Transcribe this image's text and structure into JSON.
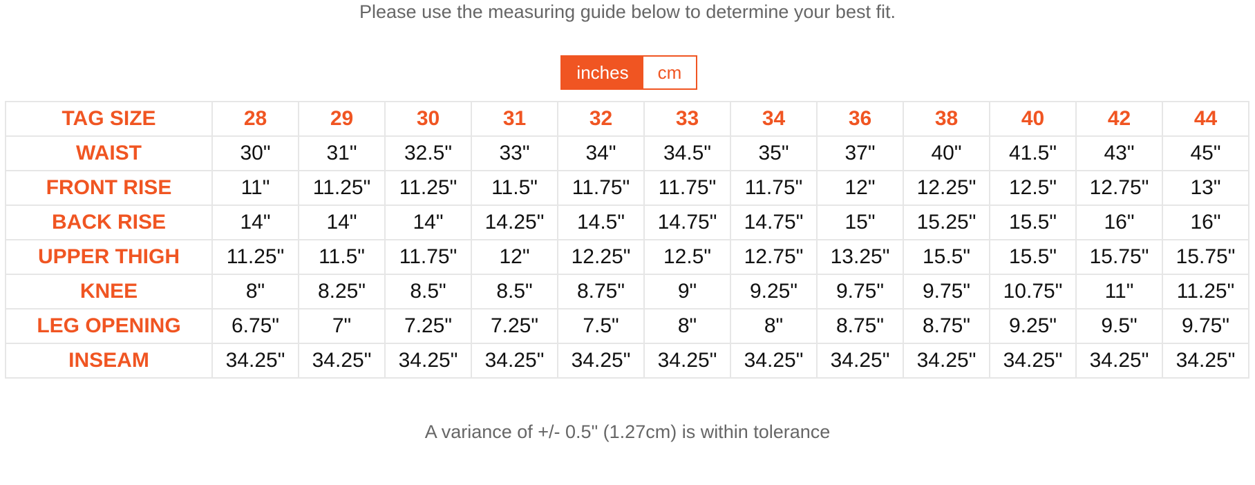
{
  "intro_text": "Please use the measuring guide below to determine your best fit.",
  "unit_toggle": {
    "options": [
      "inches",
      "cm"
    ],
    "selected": "inches"
  },
  "colors": {
    "accent": "#f05522",
    "muted_text": "#666666",
    "value_text": "#111111",
    "grid": "#e6e6e6"
  },
  "table": {
    "header_label": "TAG SIZE",
    "sizes": [
      "28",
      "29",
      "30",
      "31",
      "32",
      "33",
      "34",
      "36",
      "38",
      "40",
      "42",
      "44"
    ],
    "rows": [
      {
        "label": "WAIST",
        "values": [
          "30\"",
          "31\"",
          "32.5\"",
          "33\"",
          "34\"",
          "34.5\"",
          "35\"",
          "37\"",
          "40\"",
          "41.5\"",
          "43\"",
          "45\""
        ]
      },
      {
        "label": "FRONT RISE",
        "values": [
          "11\"",
          "11.25\"",
          "11.25\"",
          "11.5\"",
          "11.75\"",
          "11.75\"",
          "11.75\"",
          "12\"",
          "12.25\"",
          "12.5\"",
          "12.75\"",
          "13\""
        ]
      },
      {
        "label": "BACK RISE",
        "values": [
          "14\"",
          "14\"",
          "14\"",
          "14.25\"",
          "14.5\"",
          "14.75\"",
          "14.75\"",
          "15\"",
          "15.25\"",
          "15.5\"",
          "16\"",
          "16\""
        ]
      },
      {
        "label": "UPPER THIGH",
        "values": [
          "11.25\"",
          "11.5\"",
          "11.75\"",
          "12\"",
          "12.25\"",
          "12.5\"",
          "12.75\"",
          "13.25\"",
          "15.5\"",
          "15.5\"",
          "15.75\"",
          "15.75\""
        ]
      },
      {
        "label": "KNEE",
        "values": [
          "8\"",
          "8.25\"",
          "8.5\"",
          "8.5\"",
          "8.75\"",
          "9\"",
          "9.25\"",
          "9.75\"",
          "9.75\"",
          "10.75\"",
          "11\"",
          "11.25\""
        ]
      },
      {
        "label": "LEG OPENING",
        "values": [
          "6.75\"",
          "7\"",
          "7.25\"",
          "7.25\"",
          "7.5\"",
          "8\"",
          "8\"",
          "8.75\"",
          "8.75\"",
          "9.25\"",
          "9.5\"",
          "9.75\""
        ]
      },
      {
        "label": "INSEAM",
        "values": [
          "34.25\"",
          "34.25\"",
          "34.25\"",
          "34.25\"",
          "34.25\"",
          "34.25\"",
          "34.25\"",
          "34.25\"",
          "34.25\"",
          "34.25\"",
          "34.25\"",
          "34.25\""
        ]
      }
    ]
  },
  "tolerance_text": "A variance of +/- 0.5\" (1.27cm) is within tolerance"
}
